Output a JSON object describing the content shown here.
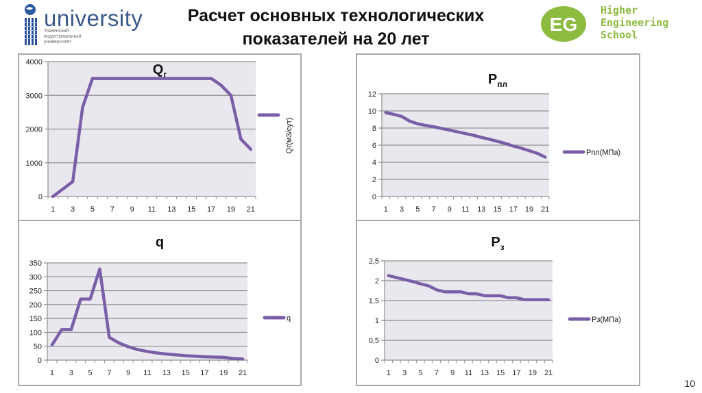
{
  "slide": {
    "title_line1": "Расчет основных технологических",
    "title_line2": "показателей на 20 лет",
    "page_number": "10"
  },
  "logos": {
    "left": {
      "word": "university",
      "sub_line1": "Тюменский",
      "sub_line2": "индустриальный",
      "sub_line3": "университет"
    },
    "right": {
      "badge": "EG",
      "line1": "Higher",
      "line2": "Engineering",
      "line3": "School"
    }
  },
  "colors": {
    "series": "#7a5ea8",
    "plot_bg": "#eae8ef",
    "grid": "#8f8f8f",
    "frame": "#a8a8a8",
    "eg_green": "#8dbb3f",
    "uni_blue": "#3a5a8c"
  },
  "chart_data": [
    {
      "id": "qg",
      "type": "line",
      "title": "Qг",
      "title_main": "Q",
      "title_sub": "г",
      "legend": "Qг(м3/сут)",
      "legend_position": "right-vertical",
      "xlabel": "",
      "ylabel": "",
      "x": [
        1,
        2,
        3,
        4,
        5,
        6,
        7,
        8,
        9,
        10,
        11,
        12,
        13,
        14,
        15,
        16,
        17,
        18,
        19,
        20,
        21
      ],
      "x_tick_labels": [
        "1",
        "3",
        "5",
        "7",
        "9",
        "11",
        "13",
        "15",
        "17",
        "19",
        "21"
      ],
      "ylim": [
        0,
        4000
      ],
      "y_ticks": [
        "0",
        "1000",
        "2000",
        "3000",
        "4000"
      ],
      "grid": true,
      "series": [
        {
          "name": "Qг(м3/сут)",
          "values": [
            0,
            220,
            440,
            2650,
            3500,
            3500,
            3500,
            3500,
            3500,
            3500,
            3500,
            3500,
            3500,
            3500,
            3500,
            3500,
            3500,
            3300,
            3000,
            1700,
            1400
          ]
        }
      ]
    },
    {
      "id": "ppl",
      "type": "line",
      "title": "Pпл",
      "title_main": "P",
      "title_sub": "пл",
      "legend": "Pпл(МПа)",
      "legend_position": "right",
      "xlabel": "",
      "ylabel": "",
      "x": [
        1,
        2,
        3,
        4,
        5,
        6,
        7,
        8,
        9,
        10,
        11,
        12,
        13,
        14,
        15,
        16,
        17,
        18,
        19,
        20,
        21
      ],
      "x_tick_labels": [
        "1",
        "3",
        "5",
        "7",
        "9",
        "11",
        "13",
        "15",
        "17",
        "19",
        "21"
      ],
      "ylim": [
        0,
        12
      ],
      "y_ticks": [
        "0",
        "2",
        "4",
        "6",
        "8",
        "10",
        "12"
      ],
      "grid": true,
      "series": [
        {
          "name": "Pпл(МПа)",
          "values": [
            9.8,
            9.6,
            9.35,
            8.8,
            8.5,
            8.3,
            8.15,
            7.95,
            7.75,
            7.55,
            7.35,
            7.15,
            6.9,
            6.7,
            6.45,
            6.2,
            5.9,
            5.65,
            5.35,
            5.05,
            4.6
          ]
        }
      ]
    },
    {
      "id": "q",
      "type": "line",
      "title": "q",
      "title_main": "q",
      "title_sub": "",
      "legend": "q",
      "legend_position": "right",
      "xlabel": "",
      "ylabel": "",
      "x": [
        1,
        2,
        3,
        4,
        5,
        6,
        7,
        8,
        9,
        10,
        11,
        12,
        13,
        14,
        15,
        16,
        17,
        18,
        19,
        20,
        21
      ],
      "x_tick_labels": [
        "1",
        "3",
        "5",
        "7",
        "9",
        "11",
        "13",
        "15",
        "17",
        "19",
        "21"
      ],
      "ylim": [
        0,
        350
      ],
      "y_ticks": [
        "0",
        "50",
        "100",
        "150",
        "200",
        "250",
        "300",
        "350"
      ],
      "grid": true,
      "series": [
        {
          "name": "q",
          "values": [
            55,
            110,
            110,
            220,
            220,
            328,
            82,
            62,
            48,
            38,
            31,
            26,
            22,
            19,
            16,
            14,
            12,
            11,
            10,
            6,
            4
          ]
        }
      ]
    },
    {
      "id": "pz",
      "type": "line",
      "title": "Pз",
      "title_main": "P",
      "title_sub": "з",
      "legend": "Pз(МПа)",
      "legend_position": "right",
      "xlabel": "",
      "ylabel": "",
      "x": [
        1,
        2,
        3,
        4,
        5,
        6,
        7,
        8,
        9,
        10,
        11,
        12,
        13,
        14,
        15,
        16,
        17,
        18,
        19,
        20,
        21
      ],
      "x_tick_labels": [
        "1",
        "3",
        "5",
        "7",
        "9",
        "11",
        "13",
        "15",
        "17",
        "19",
        "21"
      ],
      "ylim": [
        0,
        2.5
      ],
      "y_ticks": [
        "0",
        "0,5",
        "1",
        "1,5",
        "2",
        "2,5"
      ],
      "grid": true,
      "series": [
        {
          "name": "Pз(МПа)",
          "values": [
            2.13,
            2.08,
            2.03,
            1.98,
            1.92,
            1.87,
            1.77,
            1.72,
            1.72,
            1.72,
            1.67,
            1.67,
            1.62,
            1.62,
            1.62,
            1.57,
            1.57,
            1.52,
            1.52,
            1.52,
            1.52
          ]
        }
      ]
    }
  ]
}
